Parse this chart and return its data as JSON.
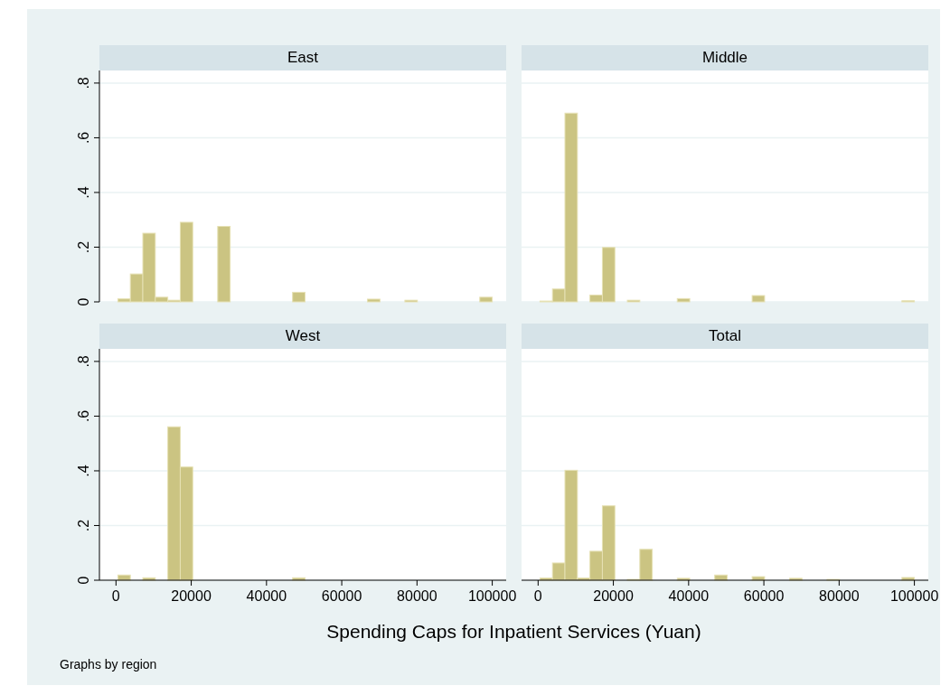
{
  "chart_data": [
    {
      "type": "histogram",
      "title": "East",
      "color": "#cbc482",
      "tick_labels": "y",
      "grid": "y",
      "bins": [
        500,
        3817,
        7133,
        10450,
        13767,
        17083,
        20400,
        23717,
        27033,
        30350,
        33667,
        36983,
        40300,
        43617,
        46933,
        50250,
        53567,
        56883,
        60200,
        63517,
        66833,
        70150,
        73467,
        76783,
        80100,
        83417,
        86733,
        90050,
        93367,
        96683,
        100000
      ],
      "values": [
        0.011,
        0.102,
        0.251,
        0.017,
        0.006,
        0.291,
        0,
        0,
        0.276,
        0,
        0,
        0,
        0,
        0,
        0.035,
        0,
        0,
        0,
        0,
        0,
        0.01,
        0,
        0,
        0.006,
        0,
        0,
        0,
        0,
        0,
        0.017
      ],
      "xlim": [
        -4400,
        103700
      ],
      "ylim": [
        0,
        0.846
      ],
      "yticks": [
        {
          "value": 0,
          "label": "0"
        },
        {
          "value": 0.2,
          "label": ".2"
        },
        {
          "value": 0.4,
          "label": ".4"
        },
        {
          "value": 0.6,
          "label": ".6"
        },
        {
          "value": 0.8,
          "label": ".8"
        }
      ]
    },
    {
      "type": "histogram",
      "title": "Middle",
      "color": "#cbc482",
      "tick_labels": false,
      "grid": "y",
      "bins": [
        500,
        3817,
        7133,
        10450,
        13767,
        17083,
        20400,
        23717,
        27033,
        30350,
        33667,
        36983,
        40300,
        43617,
        46933,
        50250,
        53567,
        56883,
        60200,
        63517,
        66833,
        70150,
        73467,
        76783,
        80100,
        83417,
        86733,
        90050,
        93367,
        96683,
        100000
      ],
      "values": [
        0.003,
        0.047,
        0.69,
        0,
        0.025,
        0.199,
        0,
        0.006,
        0,
        0,
        0,
        0.012,
        0,
        0,
        0,
        0,
        0,
        0.023,
        0,
        0,
        0,
        0,
        0,
        0,
        0,
        0,
        0,
        0,
        0,
        0.004
      ],
      "xlim": [
        -4400,
        103700
      ],
      "ylim": [
        0,
        0.846
      ],
      "yticks": [
        {
          "value": 0,
          "label": null
        },
        {
          "value": 0.2,
          "label": null
        },
        {
          "value": 0.4,
          "label": null
        },
        {
          "value": 0.6,
          "label": null
        },
        {
          "value": 0.8,
          "label": null
        }
      ]
    },
    {
      "type": "histogram",
      "title": "West",
      "color": "#cbc482",
      "grid": "y",
      "bins": [
        500,
        3817,
        7133,
        10450,
        13767,
        17083,
        20400,
        23717,
        27033,
        30350,
        33667,
        36983,
        40300,
        43617,
        46933,
        50250,
        53567,
        56883,
        60200,
        63517,
        66833,
        70150,
        73467,
        76783,
        80100,
        83417,
        86733,
        90050,
        93367,
        96683,
        100000
      ],
      "values": [
        0.019,
        0,
        0.009,
        0,
        0.561,
        0.414,
        0,
        0,
        0,
        0,
        0,
        0,
        0,
        0,
        0.009,
        0,
        0,
        0,
        0,
        0,
        0,
        0,
        0,
        0,
        0,
        0,
        0,
        0,
        0,
        0
      ],
      "xlim": [
        -4400,
        103700
      ],
      "ylim": [
        0,
        0.846
      ],
      "xticks": [
        0,
        20000,
        40000,
        60000,
        80000,
        100000
      ],
      "yticks": [
        {
          "value": 0,
          "label": "0"
        },
        {
          "value": 0.2,
          "label": ".2"
        },
        {
          "value": 0.4,
          "label": ".4"
        },
        {
          "value": 0.6,
          "label": ".6"
        },
        {
          "value": 0.8,
          "label": ".8"
        }
      ]
    },
    {
      "type": "histogram",
      "title": "Total",
      "color": "#cbc482",
      "tick_labels": "x",
      "grid": "y",
      "xlabel": "Spending Caps for Inpatient Services (Yuan)",
      "annotations": [
        "Graphs by region"
      ],
      "bins": [
        500,
        3817,
        7133,
        10450,
        13767,
        17083,
        20400,
        23717,
        27033,
        30350,
        33667,
        36983,
        40300,
        43617,
        46933,
        50250,
        53567,
        56883,
        60200,
        63517,
        66833,
        70150,
        73467,
        76783,
        80100,
        83417,
        86733,
        90050,
        93367,
        96683,
        100000
      ],
      "values": [
        0.008,
        0.063,
        0.402,
        0.008,
        0.106,
        0.272,
        0,
        0.003,
        0.113,
        0,
        0,
        0.007,
        0,
        0,
        0.019,
        0,
        0,
        0.013,
        0,
        0,
        0.007,
        0,
        0,
        0.003,
        0,
        0,
        0,
        0,
        0,
        0.01
      ],
      "xlim": [
        -4400,
        103700
      ],
      "ylim": [
        0,
        0.846
      ],
      "xticks": [
        0,
        20000,
        40000,
        60000,
        80000,
        100000
      ],
      "yticks": [
        {
          "value": 0,
          "label": null
        },
        {
          "value": 0.2,
          "label": null
        },
        {
          "value": 0.4,
          "label": null
        },
        {
          "value": 0.6,
          "label": null
        },
        {
          "value": 0.8,
          "label": null
        }
      ]
    }
  ]
}
